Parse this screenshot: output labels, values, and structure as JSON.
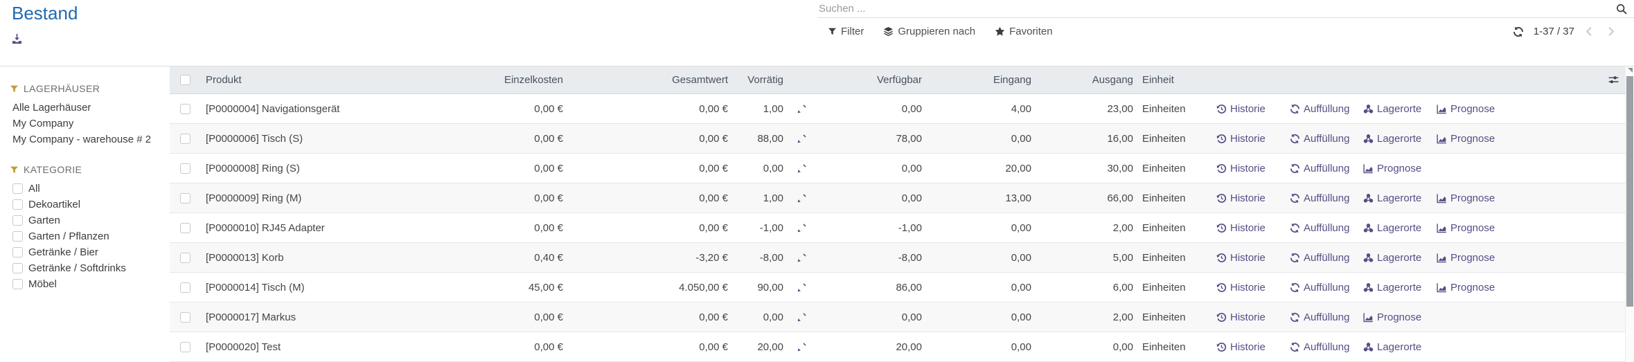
{
  "page": {
    "title": "Bestand"
  },
  "topbar": {
    "search": {
      "placeholder": "Suchen ..."
    },
    "controls": {
      "filter": "Filter",
      "group_by": "Gruppieren nach",
      "favorites": "Favoriten"
    },
    "pager": {
      "range": "1-37 / 37"
    }
  },
  "sidebar": {
    "warehouses": {
      "title": "LAGERHÄUSER",
      "items": [
        "Alle Lagerhäuser",
        "My Company",
        "My Company - warehouse # 2"
      ]
    },
    "categories": {
      "title": "KATEGORIE",
      "items": [
        "All",
        "Dekoartikel",
        "Garten",
        "Garten / Pflanzen",
        "Getränke / Bier",
        "Getränke / Softdrinks",
        "Möbel"
      ]
    }
  },
  "table": {
    "columns": {
      "product": "Produkt",
      "unit_cost": "Einzelkosten",
      "total_value": "Gesamtwert",
      "on_hand": "Vorrätig",
      "available": "Verfügbar",
      "incoming": "Eingang",
      "outgoing": "Ausgang",
      "uom": "Einheit"
    },
    "action_labels": {
      "history": "Historie",
      "replenish": "Auffüllung",
      "locations": "Lagerorte",
      "forecast": "Prognose"
    },
    "rows": [
      {
        "product": "[P0000004] Navigationsgerät",
        "unit_cost": "0,00 €",
        "total_value": "0,00 €",
        "on_hand": "1,00",
        "available": "0,00",
        "incoming": "4,00",
        "outgoing": "23,00",
        "uom": "Einheiten",
        "actions": [
          "history",
          "replenish",
          "locations",
          "forecast"
        ]
      },
      {
        "product": "[P0000006] Tisch (S)",
        "unit_cost": "0,00 €",
        "total_value": "0,00 €",
        "on_hand": "88,00",
        "available": "78,00",
        "incoming": "0,00",
        "outgoing": "16,00",
        "uom": "Einheiten",
        "actions": [
          "history",
          "replenish",
          "locations",
          "forecast"
        ]
      },
      {
        "product": "[P0000008] Ring (S)",
        "unit_cost": "0,00 €",
        "total_value": "0,00 €",
        "on_hand": "0,00",
        "available": "0,00",
        "incoming": "20,00",
        "outgoing": "30,00",
        "uom": "Einheiten",
        "actions": [
          "history",
          "replenish",
          "forecast"
        ]
      },
      {
        "product": "[P0000009] Ring (M)",
        "unit_cost": "0,00 €",
        "total_value": "0,00 €",
        "on_hand": "1,00",
        "available": "0,00",
        "incoming": "13,00",
        "outgoing": "66,00",
        "uom": "Einheiten",
        "actions": [
          "history",
          "replenish",
          "locations",
          "forecast"
        ]
      },
      {
        "product": "[P0000010] RJ45 Adapter",
        "unit_cost": "0,00 €",
        "total_value": "0,00 €",
        "on_hand": "-1,00",
        "available": "-1,00",
        "incoming": "0,00",
        "outgoing": "2,00",
        "uom": "Einheiten",
        "actions": [
          "history",
          "replenish",
          "locations",
          "forecast"
        ]
      },
      {
        "product": "[P0000013] Korb",
        "unit_cost": "0,40 €",
        "total_value": "-3,20 €",
        "on_hand": "-8,00",
        "available": "-8,00",
        "incoming": "0,00",
        "outgoing": "5,00",
        "uom": "Einheiten",
        "actions": [
          "history",
          "replenish",
          "locations",
          "forecast"
        ]
      },
      {
        "product": "[P0000014] Tisch (M)",
        "unit_cost": "45,00 €",
        "total_value": "4.050,00 €",
        "on_hand": "90,00",
        "available": "86,00",
        "incoming": "0,00",
        "outgoing": "6,00",
        "uom": "Einheiten",
        "actions": [
          "history",
          "replenish",
          "locations",
          "forecast"
        ]
      },
      {
        "product": "[P0000017] Markus",
        "unit_cost": "0,00 €",
        "total_value": "0,00 €",
        "on_hand": "0,00",
        "available": "0,00",
        "incoming": "0,00",
        "outgoing": "2,00",
        "uom": "Einheiten",
        "actions": [
          "history",
          "replenish",
          "forecast"
        ]
      },
      {
        "product": "[P0000020] Test",
        "unit_cost": "0,00 €",
        "total_value": "0,00 €",
        "on_hand": "20,00",
        "available": "20,00",
        "incoming": "0,00",
        "outgoing": "0,00",
        "uom": "Einheiten",
        "actions": [
          "history",
          "replenish",
          "locations"
        ]
      }
    ]
  },
  "icons": {
    "download": "download-icon",
    "filter": "funnel-icon",
    "group_by": "layers-icon",
    "favorites": "star-icon",
    "search": "search-icon",
    "refresh": "refresh-icon",
    "history": "history-icon",
    "replenish": "refresh-icon",
    "locations": "cluster-icon",
    "forecast": "area-chart-icon",
    "edit": "pencil-icon",
    "optional_columns": "sliders-icon"
  },
  "colors": {
    "title_blue": "#2069b0",
    "action_purple": "#534f85",
    "filter_gold": "#c49a3a",
    "header_bg": "#e9ecef",
    "row_stripe": "#f8f8f8"
  }
}
